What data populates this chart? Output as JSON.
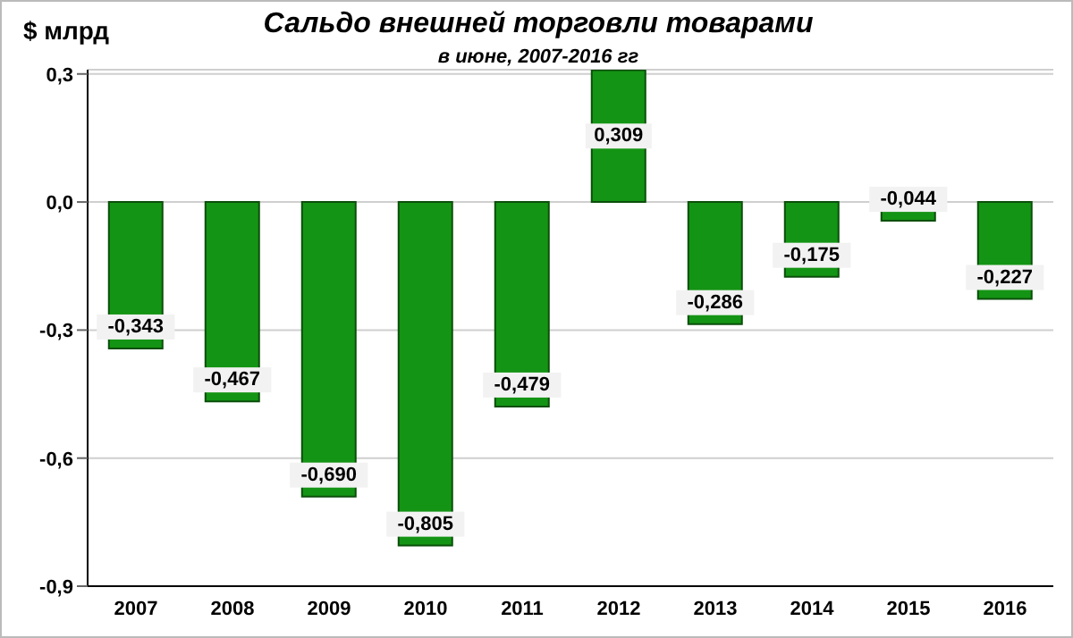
{
  "chart_data": {
    "type": "bar",
    "title": "Сальдо внешней торговли товарами",
    "subtitle": "в июне, 2007-2016 гг",
    "ylabel": "$ млрд",
    "categories": [
      "2007",
      "2008",
      "2009",
      "2010",
      "2011",
      "2012",
      "2013",
      "2014",
      "2015",
      "2016"
    ],
    "values": [
      -0.343,
      -0.467,
      -0.69,
      -0.805,
      -0.479,
      0.309,
      -0.286,
      -0.175,
      -0.044,
      -0.227
    ],
    "value_labels": [
      "-0,343",
      "-0,467",
      "-0,690",
      "-0,805",
      "-0,479",
      "0,309",
      "-0,286",
      "-0,175",
      "-0,044",
      "-0,227"
    ],
    "color": "#149414",
    "ylim": [
      -0.9,
      0.31
    ],
    "yticks": [
      {
        "value": 0.3,
        "label": "0,3"
      },
      {
        "value": 0,
        "label": "0,0"
      },
      {
        "value": -0.3,
        "label": "-0,3"
      },
      {
        "value": -0.6,
        "label": "-0,6"
      },
      {
        "value": -0.9,
        "label": "-0,9"
      }
    ],
    "grid": "y",
    "legend": false
  }
}
